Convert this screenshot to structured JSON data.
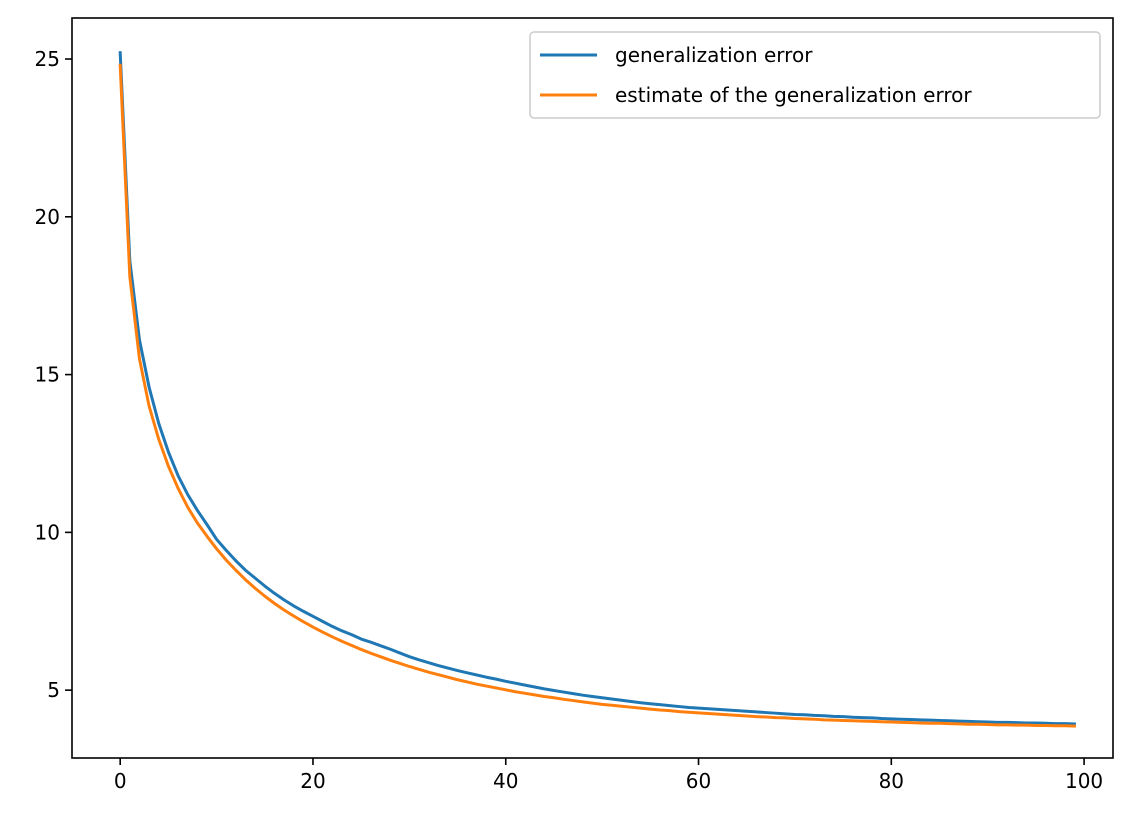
{
  "chart_data": {
    "type": "line",
    "title": "",
    "xlabel": "",
    "ylabel": "",
    "xlim": [
      -5,
      103
    ],
    "ylim": [
      2.85,
      26.3
    ],
    "x_ticks": [
      0,
      20,
      40,
      60,
      80,
      100
    ],
    "y_ticks": [
      5,
      10,
      15,
      20,
      25
    ],
    "grid": false,
    "legend": "top-right",
    "x": [
      0,
      1,
      2,
      3,
      4,
      5,
      6,
      7,
      8,
      9,
      10,
      11,
      12,
      13,
      14,
      15,
      16,
      17,
      18,
      19,
      20,
      21,
      22,
      23,
      24,
      25,
      26,
      27,
      28,
      29,
      30,
      31,
      32,
      33,
      34,
      35,
      36,
      37,
      38,
      39,
      40,
      41,
      42,
      43,
      44,
      45,
      46,
      47,
      48,
      49,
      50,
      51,
      52,
      53,
      54,
      55,
      56,
      57,
      58,
      59,
      60,
      61,
      62,
      63,
      64,
      65,
      66,
      67,
      68,
      69,
      70,
      71,
      72,
      73,
      74,
      75,
      76,
      77,
      78,
      79,
      80,
      81,
      82,
      83,
      84,
      85,
      86,
      87,
      88,
      89,
      90,
      91,
      92,
      93,
      94,
      95,
      96,
      97,
      98,
      99
    ],
    "series": [
      {
        "name": "generalization error",
        "color": "#1f77b4",
        "values": [
          25.2,
          18.6,
          16.1,
          14.6,
          13.45,
          12.55,
          11.8,
          11.2,
          10.7,
          10.25,
          9.78,
          9.43,
          9.1,
          8.8,
          8.55,
          8.3,
          8.07,
          7.86,
          7.67,
          7.5,
          7.34,
          7.18,
          7.02,
          6.88,
          6.76,
          6.62,
          6.52,
          6.41,
          6.3,
          6.18,
          6.06,
          5.96,
          5.87,
          5.78,
          5.7,
          5.62,
          5.55,
          5.48,
          5.41,
          5.35,
          5.28,
          5.22,
          5.16,
          5.1,
          5.04,
          4.99,
          4.94,
          4.89,
          4.84,
          4.8,
          4.76,
          4.72,
          4.68,
          4.64,
          4.6,
          4.57,
          4.54,
          4.51,
          4.48,
          4.45,
          4.43,
          4.41,
          4.39,
          4.37,
          4.35,
          4.33,
          4.31,
          4.29,
          4.27,
          4.25,
          4.23,
          4.22,
          4.2,
          4.19,
          4.17,
          4.16,
          4.14,
          4.13,
          4.12,
          4.1,
          4.09,
          4.08,
          4.07,
          4.06,
          4.05,
          4.04,
          4.03,
          4.02,
          4.01,
          4.0,
          3.99,
          3.98,
          3.98,
          3.97,
          3.96,
          3.96,
          3.95,
          3.94,
          3.94,
          3.93
        ]
      },
      {
        "name": "estimate of the generalization error",
        "color": "#ff7f0e",
        "values": [
          24.8,
          18.1,
          15.5,
          14.0,
          12.95,
          12.1,
          11.4,
          10.8,
          10.3,
          9.88,
          9.48,
          9.12,
          8.8,
          8.5,
          8.23,
          7.98,
          7.75,
          7.54,
          7.35,
          7.17,
          7.0,
          6.84,
          6.69,
          6.55,
          6.42,
          6.29,
          6.17,
          6.06,
          5.95,
          5.85,
          5.75,
          5.66,
          5.57,
          5.49,
          5.41,
          5.33,
          5.26,
          5.19,
          5.13,
          5.07,
          5.01,
          4.95,
          4.9,
          4.85,
          4.8,
          4.76,
          4.71,
          4.67,
          4.63,
          4.59,
          4.55,
          4.52,
          4.49,
          4.46,
          4.43,
          4.4,
          4.37,
          4.35,
          4.32,
          4.3,
          4.28,
          4.26,
          4.24,
          4.22,
          4.2,
          4.18,
          4.16,
          4.15,
          4.13,
          4.12,
          4.1,
          4.09,
          4.08,
          4.06,
          4.05,
          4.04,
          4.03,
          4.02,
          4.01,
          4.0,
          3.99,
          3.98,
          3.97,
          3.96,
          3.95,
          3.95,
          3.94,
          3.93,
          3.92,
          3.92,
          3.91,
          3.9,
          3.9,
          3.89,
          3.89,
          3.88,
          3.88,
          3.87,
          3.87,
          3.86
        ]
      }
    ]
  }
}
